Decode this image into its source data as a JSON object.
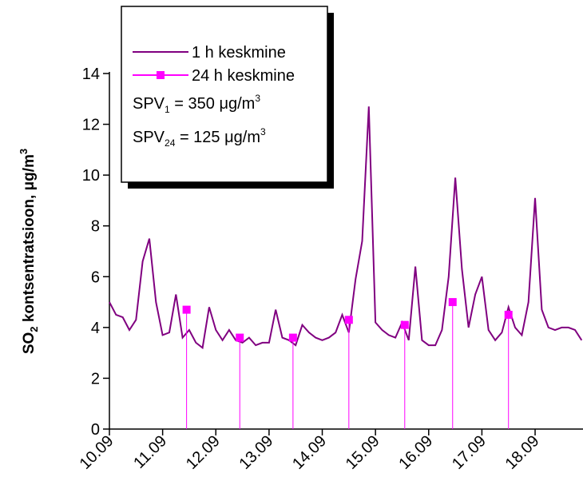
{
  "chart_data": {
    "type": "line",
    "y_label": {
      "main": "SO",
      "sub": "2",
      "rest": " kontsentratsioon, μg/m",
      "sup": "3"
    },
    "xlim": [
      0,
      8.9
    ],
    "xticks": [
      {
        "value": 0,
        "label": "10.09"
      },
      {
        "value": 1,
        "label": "11.09"
      },
      {
        "value": 2,
        "label": "12.09"
      },
      {
        "value": 3,
        "label": "13.09"
      },
      {
        "value": 4,
        "label": "14.09"
      },
      {
        "value": 5,
        "label": "15.09"
      },
      {
        "value": 6,
        "label": "16.09"
      },
      {
        "value": 7,
        "label": "17.09"
      },
      {
        "value": 8,
        "label": "18.09"
      }
    ],
    "ylim": [
      0,
      14
    ],
    "yticks": [
      0,
      2,
      4,
      6,
      8,
      10,
      12,
      14
    ],
    "series": [
      {
        "name": "1 h keskmine",
        "color": "#800080",
        "x": [
          0,
          0.125,
          0.25,
          0.375,
          0.5,
          0.625,
          0.75,
          0.875,
          1,
          1.125,
          1.25,
          1.375,
          1.5,
          1.625,
          1.75,
          1.875,
          2,
          2.125,
          2.25,
          2.375,
          2.5,
          2.625,
          2.75,
          2.875,
          3,
          3.125,
          3.25,
          3.375,
          3.5,
          3.625,
          3.75,
          3.875,
          4,
          4.125,
          4.25,
          4.375,
          4.5,
          4.625,
          4.75,
          4.875,
          5,
          5.125,
          5.25,
          5.375,
          5.5,
          5.625,
          5.75,
          5.875,
          6,
          6.125,
          6.25,
          6.375,
          6.5,
          6.625,
          6.75,
          6.875,
          7,
          7.125,
          7.25,
          7.375,
          7.5,
          7.625,
          7.75,
          7.875,
          8,
          8.125,
          8.25,
          8.375,
          8.5,
          8.625,
          8.75,
          8.875
        ],
        "values": [
          5.0,
          4.5,
          4.4,
          3.9,
          4.3,
          6.6,
          7.5,
          5.0,
          3.7,
          3.8,
          5.3,
          3.6,
          3.9,
          3.4,
          3.2,
          4.8,
          3.9,
          3.5,
          3.9,
          3.5,
          3.4,
          3.6,
          3.3,
          3.4,
          3.4,
          4.7,
          3.6,
          3.5,
          3.3,
          4.1,
          3.8,
          3.6,
          3.5,
          3.6,
          3.8,
          4.5,
          3.8,
          5.9,
          7.4,
          12.7,
          4.2,
          3.9,
          3.7,
          3.6,
          4.2,
          3.5,
          6.4,
          3.5,
          3.3,
          3.3,
          3.9,
          6.0,
          9.9,
          6.3,
          4.0,
          5.3,
          6.0,
          3.9,
          3.5,
          3.8,
          4.8,
          4.0,
          3.7,
          5.0,
          9.1,
          4.7,
          4.0,
          3.9,
          4.0,
          4.0,
          3.9,
          3.5
        ]
      },
      {
        "name": "24 h keskmine",
        "color": "#ff00ff",
        "marker": "square",
        "droplines": true,
        "x": [
          1.45,
          2.45,
          3.45,
          4.5,
          5.55,
          6.45,
          7.5
        ],
        "values": [
          4.7,
          3.6,
          3.6,
          4.3,
          4.1,
          5.0,
          4.5
        ]
      }
    ],
    "annotations": [
      {
        "text": "SPV",
        "sub": "1",
        "rest": " = 350 μg/m",
        "sup": "3"
      },
      {
        "text": "SPV",
        "sub": "24",
        "rest": " = 125 μg/m",
        "sup": "3"
      }
    ]
  }
}
